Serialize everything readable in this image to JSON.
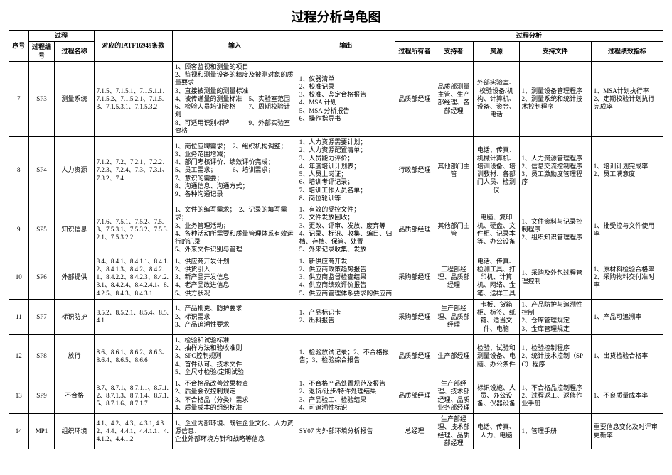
{
  "title": "过程分析乌龟图",
  "columns": {
    "seq": "序号",
    "process_group": "过程",
    "process_code": "过程编号",
    "process_name": "过程名称",
    "iatf": "对应的IATF16949条款",
    "input": "输入",
    "output": "输出",
    "analysis_group": "过程分析",
    "owner": "过程所有者",
    "supporter": "支持者",
    "resource": "资源",
    "support_doc": "支持文件",
    "kpi": "过程绩效指标"
  },
  "col_widths": {
    "seq": "3%",
    "process_code": "4%",
    "process_name": "6%",
    "iatf": "12%",
    "input": "19%",
    "output": "15%",
    "owner": "6%",
    "supporter": "6%",
    "resource": "7%",
    "support_doc": "11%",
    "kpi": "11%"
  },
  "rows": [
    {
      "seq": "7",
      "code": "SP3",
      "name": "测量系统",
      "iatf": "7.1.5、7.1.5.1、7.1.5.1.1、7.1.5.2、7.1.5.2.1、7.1.5.3、7.1.5.3.1、7.1.5.3.2",
      "input": "1、顾客监视和测量的项目\n2、监视和测量设备的精度及被测对象的质量要求\n3、直接被测量的测量标准\n4、被传递量的测量标准　5、实验室范围\n6、检验人员培训资格　　7、周期校验计划\n8、可适用识别标牌　　　9、外部实验室资格",
      "output": "1、仪器清单\n2、校准记录\n3、校准、鉴定合格报告\n4、MSA 计划\n5、MSA 分析报告\n6、操作指导书",
      "owner": "品质部经理",
      "supporter": "品质部测量主管、生产部经理、各部经理",
      "resource": "外部实验室、校验设备/机构、计算机、设备、资金、电话",
      "doc": "1、测量设备管理程序\n2、测量系统和统计技术控制程序",
      "kpi": "1、MSA计划执行率\n2、定期校验计划执行完成率"
    },
    {
      "seq": "8",
      "code": "SP4",
      "name": "人力资源",
      "iatf": "7.1.2、7.2、7.2.1、7.2.2、7.2.3、7.2.4、7.3、7.3.1、7.3.2、7.4",
      "input": "1、岗位应聘需求；　2、组织机构调整；\n3、业务范围增减；\n4、部门考核评价、绩效评价完成；\n5、员工需求；　　　6、培训需求；\n7、意识的需要；\n8、沟通信息、沟通方式；\n9、各种沟通记录",
      "output": "1、人力资源需要计划；\n2、人力资源配置清单；\n3、人员能力评价；\n4、年度培训计划表；\n5、人员上岗证；\n6、培训考评记录；\n7、培训工作人员名单；\n8、岗位轮训等",
      "owner": "行政部经理",
      "supporter": "其他部门主管",
      "resource": "电话、传真、机械计算机、培训设备、培训教材、各部门人员、检测仪",
      "doc": "1、人力资源管理程序\n2、信息交流控制程序\n3、员工激励度管理程序",
      "kpi": "1、培训计划完成率\n2、员工满意度"
    },
    {
      "seq": "9",
      "code": "SP5",
      "name": "知识信息",
      "iatf": "7.1.6、7.5.1、7.5.2、7.5.3、7.5.3.1、7.5.3.2、7.5.3.2.1、7.5.3.2.2",
      "input": "1、文件的编写需求；　2、记录的填写需求；\n3、业务管理活动；\n4、各种活动所需要和质量管理体系有效运行的记录\n5、外来文件识别与管理",
      "output": "1、有效的受控文件；\n2、文件发放回收；\n3、更改、评审、发放、废弃等\n4、记录、标识、收集、编目、归档、存档、保管、处置\n5、外来记录收集、发放",
      "owner": "品质部经理",
      "supporter": "其他部门主管",
      "resource": "电脑、复印机、硬盘、文件柜、记录本等、办公设备",
      "doc": "1、文件资料与记录控制程序\n2、组织知识管理程序",
      "kpi": "1、批受控与文件使用率"
    },
    {
      "seq": "10",
      "code": "SP6",
      "name": "外部提供",
      "iatf": "8.4、8.4.1、8.4.1.1、8.4.1.2、8.4.1.3、8.4.2、8.4.2.1、8.4.2.2、8.4.2.3、8.4.2.3.1、8.4.2.4、8.4.2.4.1、8.4.2.5、8.4.3、8.4.3.1",
      "input": "1、供应商开发计划\n2、供货引入\n3、新产品开发信息\n4、老产品改进信息\n5、供方状况",
      "output": "1、新供应商开发\n2、供应商政策趋势报告\n3、供应商监督检查结果\n4、供应商绩效评价报告\n5、供应商管理体系要求的供应商",
      "owner": "采购部经理",
      "supporter": "工程部经理、品质部经理",
      "resource": "电话、传真、检测工具、打印机、计算机、网络、金笔、送样工具",
      "doc": "1、采购及外包过程管理控制",
      "kpi": "1、原材料检验合格率\n2、采购物料交付准时率"
    },
    {
      "seq": "11",
      "code": "SP7",
      "name": "标识防护",
      "iatf": "8.5.2、8.5.2.1、8.5.4、8.5.4.1",
      "input": "1、产品批更、防护要求\n2、标识需求\n3、产品追溯性要求",
      "output": "1、产品标识卡\n2、出料报告",
      "owner": "采购部经理",
      "supporter": "生产部经理、品质部经理",
      "resource": "卡板、货箱柜、标签、纸箱、适当文件、电脑",
      "doc": "1、产品防护与追溯性控制\n2、仓库管理规定\n3、金库管理规定",
      "kpi": "1、产品可追溯率"
    },
    {
      "seq": "12",
      "code": "SP8",
      "name": "放行",
      "iatf": "8.6、8.6.1、8.6.2、8.6.3、8.6.4、8.6.5、8.6.6",
      "input": "1、检验和试验标准\n2、抽样方法和验收准则\n3、SPC控制规则\n4、首件认可、技术文件\n5、全尺寸检验/定期试验",
      "output": "1、检验放试记录；2、不合格报告；3、检验综合报告",
      "owner": "品质部经理",
      "supporter": "生产部经理",
      "resource": "检验、试验和测量设备、电脑、办公条件",
      "doc": "1、检验控制程序\n2、统计技术控制（SPC）程序",
      "kpi": "1、出货检验合格率"
    },
    {
      "seq": "13",
      "code": "SP9",
      "name": "不合格",
      "iatf": "8.7、8.7.1、8.7.1.1、8.7.1.2、8.7.1.3、8.7.1.4、8.7.1.5、8.7.1.6、8.7.1.7",
      "input": "1、不合格品改善效果检查\n2、质量会议控制规定\n3、不合格品（分类）需求\n4、质量成本的组织标准",
      "output": "1、不合格产品处置规范及报告\n2、退货/让步/特许处理结果\n3、产品验工、检验结果\n4、可追溯性标识",
      "owner": "品质部经理",
      "supporter": "生产部经理、技术部经理、品质业务部经理",
      "resource": "标识设施、人员、办公设备、仪器设备",
      "doc": "1、不合格品控制程序\n2、过程返工、返修作业手册",
      "kpi": "1、不良质量成本率"
    },
    {
      "seq": "14",
      "code": "MP1",
      "name": "组织环境",
      "iatf": "4.1、4.2、4.3、4.3.1, 4.3.2、4.4、4.4.1、4.4.1.1、4.4.1.2、4.4.1.2",
      "input": "1、企业内部环境、既往企业文化、人力资源信息、\n企业外部环境方针和战略等信息",
      "output": "SY07 内外部环境分析报告",
      "owner": "总经理",
      "supporter": "生产部经理、技术部经理、品质部经理",
      "resource": "电话、传真、人力、电脑",
      "doc": "1、管理手册",
      "kpi": "重要信息变化及时评审更新率"
    }
  ],
  "style": {
    "title_fontsize": 18,
    "cell_fontsize": 9,
    "border_color": "#000000",
    "background": "#ffffff"
  }
}
